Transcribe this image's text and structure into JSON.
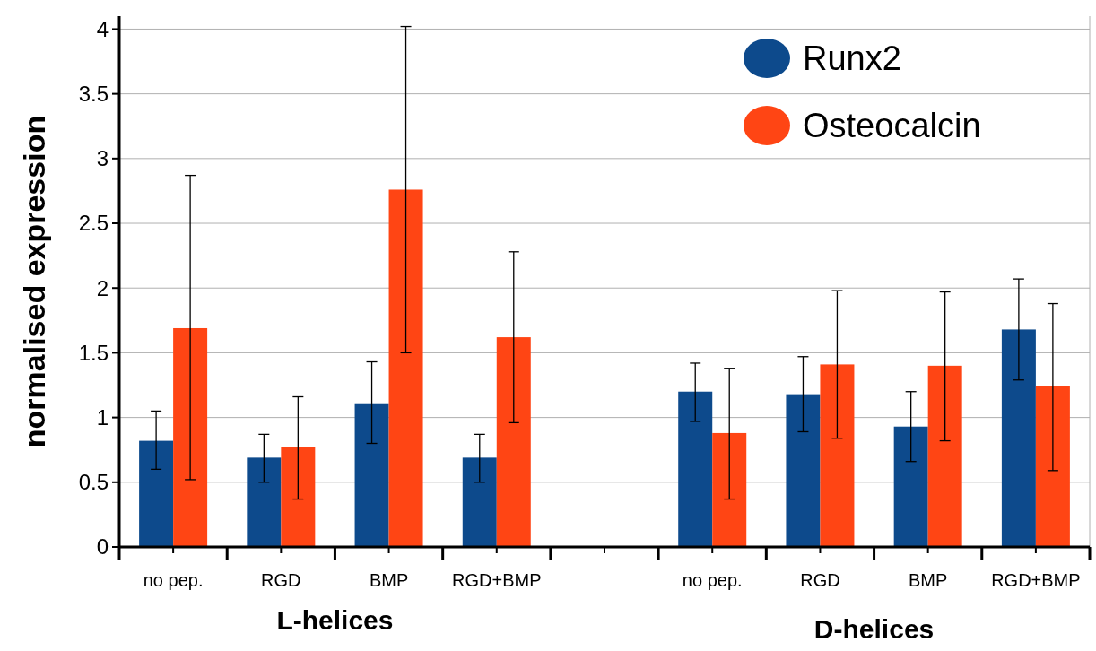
{
  "chart_data": {
    "type": "bar",
    "ylabel": "normalised expression",
    "categories": [
      "no pep.",
      "RGD",
      "BMP",
      "RGD+BMP",
      null,
      "no pep.",
      "RGD",
      "BMP",
      "RGD+BMP"
    ],
    "series": [
      {
        "name": "Runx2",
        "color": "#0d4a8c",
        "values": [
          0.82,
          0.69,
          1.11,
          0.69,
          null,
          1.2,
          1.18,
          0.93,
          1.68
        ],
        "errors": [
          [
            0.6,
            1.05
          ],
          [
            0.5,
            0.87
          ],
          [
            0.8,
            1.43
          ],
          [
            0.5,
            0.87
          ],
          null,
          [
            0.97,
            1.42
          ],
          [
            0.89,
            1.47
          ],
          [
            0.66,
            1.2
          ],
          [
            1.29,
            2.07
          ]
        ]
      },
      {
        "name": "Osteocalcin",
        "color": "#ff4514",
        "values": [
          1.69,
          0.77,
          2.76,
          1.62,
          null,
          0.88,
          1.41,
          1.4,
          1.24
        ],
        "errors": [
          [
            0.52,
            2.87
          ],
          [
            0.37,
            1.16
          ],
          [
            1.5,
            4.02
          ],
          [
            0.96,
            2.28
          ],
          null,
          [
            0.37,
            1.38
          ],
          [
            0.84,
            1.98
          ],
          [
            0.82,
            1.97
          ],
          [
            0.59,
            1.88
          ]
        ]
      }
    ],
    "annotations": [
      "L-helices",
      "D-helices"
    ],
    "ylim": [
      0,
      4.1
    ],
    "yticks": [
      0,
      0.5,
      1,
      1.5,
      2,
      2.5,
      3,
      3.5,
      4
    ],
    "grid": "y",
    "legend": "top right"
  }
}
